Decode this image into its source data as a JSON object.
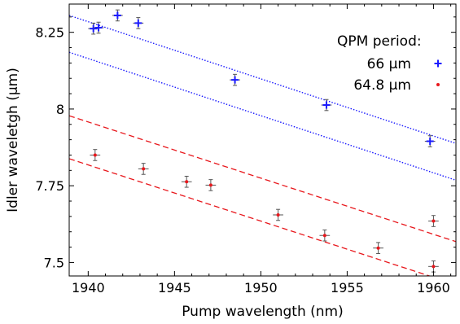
{
  "chart_data": {
    "type": "scatter",
    "title": "",
    "xlabel": "Pump wavelength (nm)",
    "ylabel": "Idler waveletgh (µm)",
    "xlim": [
      1938.9,
      1961.3
    ],
    "ylim": [
      7.456,
      8.342
    ],
    "xticks": [
      1940,
      1945,
      1950,
      1955,
      1960
    ],
    "xtick_labels": [
      "1940",
      "1945",
      "1950",
      "1955",
      "1960"
    ],
    "yticks": [
      7.5,
      7.75,
      8,
      8.25
    ],
    "ytick_labels": [
      "7.5",
      "7.75",
      "8",
      "8.25"
    ],
    "grid": false,
    "legend_position": "top-right",
    "legend_title": "QPM period:",
    "series": [
      {
        "name": "66 µm",
        "color": "#1a1aff",
        "marker": "plus",
        "points": [
          {
            "x": 1940.3,
            "y": 8.262,
            "xerr": 0.3,
            "yerr": 0.018
          },
          {
            "x": 1940.6,
            "y": 8.265,
            "xerr": 0.3,
            "yerr": 0.018
          },
          {
            "x": 1941.7,
            "y": 8.305,
            "xerr": 0.3,
            "yerr": 0.018
          },
          {
            "x": 1942.9,
            "y": 8.28,
            "xerr": 0.3,
            "yerr": 0.018
          },
          {
            "x": 1948.5,
            "y": 8.095,
            "xerr": 0.3,
            "yerr": 0.018
          },
          {
            "x": 1953.8,
            "y": 8.013,
            "xerr": 0.3,
            "yerr": 0.018
          },
          {
            "x": 1959.8,
            "y": 7.895,
            "xerr": 0.3,
            "yerr": 0.018
          }
        ]
      },
      {
        "name": "64.8 µm",
        "color": "#e8171c",
        "marker": "dot",
        "points": [
          {
            "x": 1940.4,
            "y": 7.85,
            "xerr": 0.3,
            "yerr": 0.018
          },
          {
            "x": 1943.2,
            "y": 7.805,
            "xerr": 0.3,
            "yerr": 0.018
          },
          {
            "x": 1945.7,
            "y": 7.763,
            "xerr": 0.3,
            "yerr": 0.018
          },
          {
            "x": 1947.1,
            "y": 7.752,
            "xerr": 0.3,
            "yerr": 0.018
          },
          {
            "x": 1951.0,
            "y": 7.655,
            "xerr": 0.3,
            "yerr": 0.018
          },
          {
            "x": 1953.7,
            "y": 7.588,
            "xerr": 0.3,
            "yerr": 0.018
          },
          {
            "x": 1956.8,
            "y": 7.547,
            "xerr": 0.3,
            "yerr": 0.018
          },
          {
            "x": 1960.0,
            "y": 7.635,
            "xerr": 0.3,
            "yerr": 0.018
          },
          {
            "x": 1960.0,
            "y": 7.487,
            "xerr": 0.3,
            "yerr": 0.018
          }
        ]
      }
    ],
    "lines": [
      {
        "series": "66 µm",
        "style": "dotted",
        "color": "#1a1aff",
        "x": [
          1938.9,
          1961.3
        ],
        "y": [
          8.305,
          7.888
        ]
      },
      {
        "series": "66 µm",
        "style": "dotted",
        "color": "#1a1aff",
        "x": [
          1938.9,
          1961.3
        ],
        "y": [
          8.185,
          7.768
        ]
      },
      {
        "series": "64.8 µm",
        "style": "dashed",
        "color": "#e8171c",
        "x": [
          1938.9,
          1961.3
        ],
        "y": [
          7.978,
          7.568
        ]
      },
      {
        "series": "64.8 µm",
        "style": "dashed",
        "color": "#e8171c",
        "x": [
          1938.9,
          1961.3
        ],
        "y": [
          7.838,
          7.428
        ]
      }
    ]
  }
}
